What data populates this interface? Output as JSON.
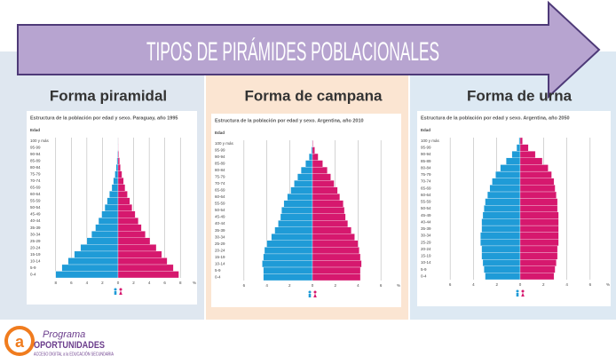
{
  "banner": {
    "title": "TIPOS DE PIRÁMIDES POBLACIONALES"
  },
  "headings": [
    "Forma piramidal",
    "Forma de campana",
    "Forma de urna"
  ],
  "chart_data": [
    {
      "type": "bar",
      "orientation": "horizontal-pyramid",
      "title": "Estructura de la población por edad y sexo. Paraguay, año 1995",
      "y_label": "Edad",
      "x_label": "%",
      "categories": [
        "0-4",
        "5-9",
        "10-14",
        "15-19",
        "20-24",
        "25-29",
        "30-34",
        "35-39",
        "40-44",
        "45-49",
        "50-54",
        "55-59",
        "60-64",
        "65-69",
        "70-74",
        "75-79",
        "80-84",
        "85-89",
        "90-94",
        "95-99",
        "100 y más"
      ],
      "series": [
        {
          "color": "#1f9bd7",
          "values": [
            -8.0,
            -7.2,
            -6.4,
            -5.6,
            -4.8,
            -4.0,
            -3.4,
            -2.9,
            -2.5,
            -2.1,
            -1.7,
            -1.4,
            -1.1,
            -0.8,
            -0.6,
            -0.4,
            -0.25,
            -0.15,
            -0.08,
            -0.03,
            -0.01
          ]
        },
        {
          "color": "#d6186e",
          "values": [
            7.8,
            7.1,
            6.3,
            5.6,
            4.9,
            4.1,
            3.5,
            3.0,
            2.6,
            2.2,
            1.8,
            1.5,
            1.2,
            0.9,
            0.7,
            0.5,
            0.3,
            0.2,
            0.1,
            0.04,
            0.01
          ]
        }
      ],
      "xlim": [
        -9,
        9
      ],
      "xticks": [
        {
          "value": -8,
          "label": "8"
        },
        {
          "value": -6,
          "label": "6"
        },
        {
          "value": -4,
          "label": "4"
        },
        {
          "value": -2,
          "label": "2"
        },
        0,
        2,
        4,
        6,
        8
      ],
      "grid": true
    },
    {
      "type": "bar",
      "orientation": "horizontal-pyramid",
      "title": "Estructura de la población por edad y sexo. Argentina, año 2010",
      "y_label": "Edad",
      "x_label": "%",
      "categories": [
        "0-4",
        "5-9",
        "10-14",
        "15-19",
        "20-24",
        "25-29",
        "30-34",
        "35-39",
        "40-44",
        "45-49",
        "50-54",
        "55-59",
        "60-64",
        "65-69",
        "70-74",
        "75-79",
        "80-84",
        "85-89",
        "90-94",
        "95-99",
        "100 y más"
      ],
      "series": [
        {
          "color": "#1f9bd7",
          "values": [
            -4.3,
            -4.3,
            -4.4,
            -4.3,
            -4.2,
            -4.0,
            -3.6,
            -3.3,
            -3.0,
            -2.8,
            -2.7,
            -2.5,
            -2.2,
            -1.9,
            -1.6,
            -1.3,
            -1.0,
            -0.6,
            -0.3,
            -0.1,
            -0.03
          ]
        },
        {
          "color": "#d6186e",
          "values": [
            4.2,
            4.2,
            4.3,
            4.2,
            4.1,
            4.0,
            3.7,
            3.4,
            3.1,
            2.9,
            2.8,
            2.7,
            2.4,
            2.2,
            1.9,
            1.6,
            1.3,
            0.9,
            0.5,
            0.2,
            0.05
          ]
        }
      ],
      "xlim": [
        -7,
        7
      ],
      "xticks": [
        {
          "value": -6,
          "label": "6"
        },
        {
          "value": -4,
          "label": "4"
        },
        {
          "value": -2,
          "label": "2"
        },
        0,
        2,
        4,
        6
      ],
      "grid": true
    },
    {
      "type": "bar",
      "orientation": "horizontal-pyramid",
      "title": "Estructura de la población por edad y sexo. Argentina, año 2050",
      "y_label": "Edad",
      "x_label": "%",
      "categories": [
        "0-4",
        "5-9",
        "10-14",
        "15-19",
        "20-24",
        "25-29",
        "30-34",
        "35-39",
        "40-44",
        "45-49",
        "50-54",
        "55-59",
        "60-64",
        "65-69",
        "70-74",
        "75-79",
        "80-84",
        "85-89",
        "90-94",
        "95-99",
        "100 y más"
      ],
      "series": [
        {
          "color": "#1f9bd7",
          "values": [
            -3.0,
            -3.1,
            -3.2,
            -3.3,
            -3.3,
            -3.4,
            -3.4,
            -3.3,
            -3.3,
            -3.2,
            -3.1,
            -3.0,
            -2.8,
            -2.6,
            -2.4,
            -2.1,
            -1.7,
            -1.2,
            -0.7,
            -0.3,
            -0.1
          ]
        },
        {
          "color": "#d6186e",
          "values": [
            2.9,
            3.0,
            3.1,
            3.2,
            3.2,
            3.3,
            3.3,
            3.3,
            3.3,
            3.3,
            3.2,
            3.2,
            3.1,
            3.0,
            2.9,
            2.7,
            2.4,
            1.9,
            1.3,
            0.7,
            0.2
          ]
        }
      ],
      "xlim": [
        -7,
        7
      ],
      "xticks": [
        {
          "value": -6,
          "label": "6"
        },
        {
          "value": -4,
          "label": "4"
        },
        {
          "value": -2,
          "label": "2"
        },
        0,
        2,
        4,
        6
      ],
      "grid": true
    }
  ],
  "logo": {
    "line1": "Programa",
    "line2": "OPORTUNIDADES",
    "line3": "ACCESO DIGITAL a la EDUCACIÓN SECUNDARIA"
  }
}
